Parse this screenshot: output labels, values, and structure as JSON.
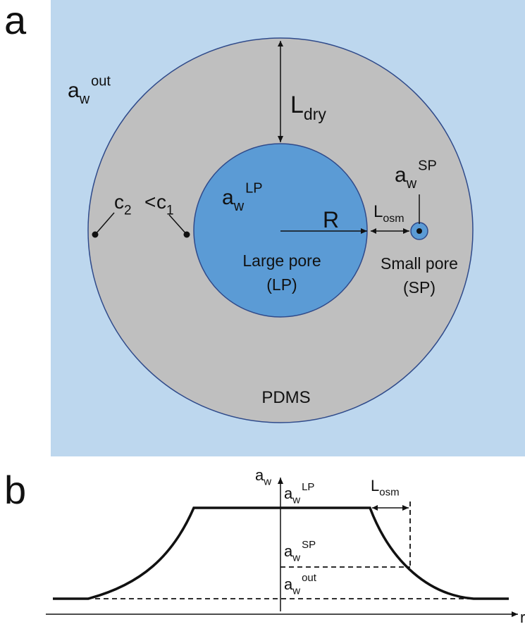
{
  "panel_a": {
    "label": "a",
    "outside_activity": {
      "base": "a",
      "sub": "w",
      "sup": "out"
    },
    "l_dry": {
      "base": "L",
      "sub": "dry"
    },
    "large_pore_activity": {
      "base": "a",
      "sub": "w",
      "sup": "LP"
    },
    "radius": "R",
    "l_osm": {
      "base": "L",
      "sub": "osm"
    },
    "small_pore_activity": {
      "base": "a",
      "sub": "w",
      "sup": "SP"
    },
    "concentration": {
      "c2": {
        "base": "c",
        "sub": "2"
      },
      "op": "<",
      "c1": {
        "base": "c",
        "sub": "1"
      }
    },
    "large_pore": [
      "Large pore",
      "(LP)"
    ],
    "small_pore": [
      "Small pore",
      "(SP)"
    ],
    "material": "PDMS"
  },
  "panel_b": {
    "label": "b",
    "y_axis": {
      "base": "a",
      "sub": "w"
    },
    "x_axis": "r",
    "lp_level": {
      "base": "a",
      "sub": "w",
      "sup": "LP"
    },
    "sp_level": {
      "base": "a",
      "sub": "w",
      "sup": "SP"
    },
    "out_level": {
      "base": "a",
      "sub": "w",
      "sup": "out"
    },
    "l_osm": {
      "base": "L",
      "sub": "osm"
    }
  }
}
